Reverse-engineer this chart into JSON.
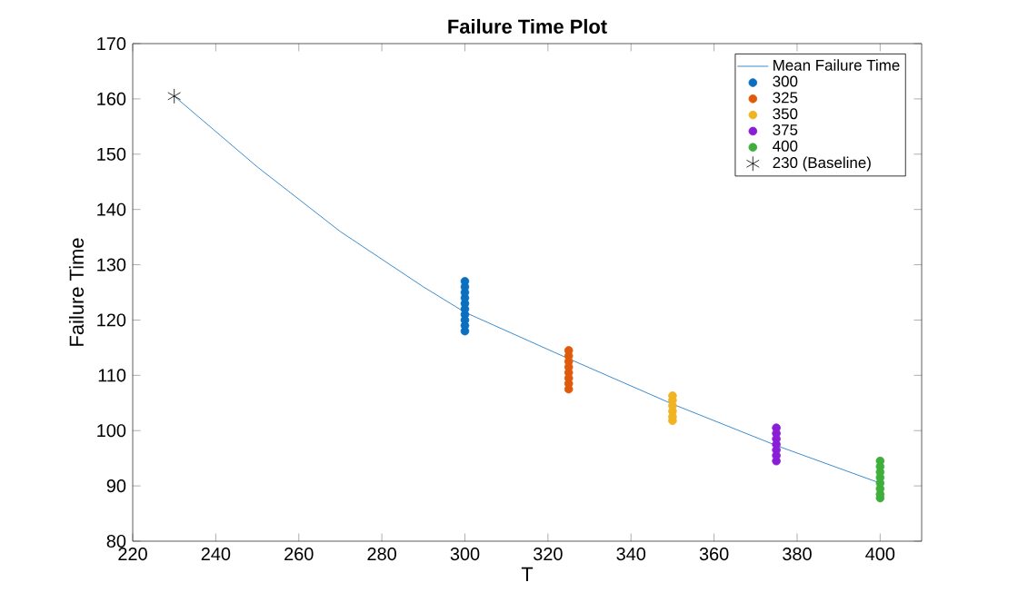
{
  "chart_data": {
    "type": "scatter",
    "title": "Failure Time Plot",
    "xlabel": "T",
    "ylabel": "Failure Time",
    "xlim": [
      220,
      410
    ],
    "xticks": [
      220,
      240,
      260,
      280,
      300,
      320,
      340,
      360,
      380,
      400
    ],
    "ylim": [
      80,
      170
    ],
    "yticks": [
      80,
      90,
      100,
      110,
      120,
      130,
      140,
      150,
      160,
      170
    ],
    "grid": false,
    "legend": "top right",
    "series": [
      {
        "name": "Mean Failure Time",
        "type": "line",
        "marker": "none",
        "color": "#0b6fc0",
        "x": [
          230,
          250,
          270,
          280,
          290,
          300,
          325,
          350,
          375,
          400
        ],
        "values": [
          160.5,
          147.7,
          136.0,
          131,
          126,
          121.4,
          113,
          104.8,
          97.3,
          90.5
        ]
      },
      {
        "name": "300",
        "marker": "circle",
        "color": "#0b6fc0",
        "x": [
          300,
          300,
          300,
          300,
          300,
          300,
          300,
          300,
          300,
          300
        ],
        "values": [
          118,
          119,
          120,
          121,
          122,
          123,
          124,
          125,
          126,
          127
        ]
      },
      {
        "name": "325",
        "marker": "circle",
        "color": "#e05a0b",
        "x": [
          325,
          325,
          325,
          325,
          325,
          325,
          325,
          325
        ],
        "values": [
          107.5,
          108.5,
          109.5,
          110.5,
          111.5,
          112.5,
          113.5,
          114.5
        ]
      },
      {
        "name": "350",
        "marker": "circle",
        "color": "#f0b323",
        "x": [
          350,
          350,
          350,
          350,
          350,
          350
        ],
        "values": [
          101.8,
          102.5,
          103.5,
          104.5,
          105.5,
          106.3
        ]
      },
      {
        "name": "375",
        "marker": "circle",
        "color": "#8a1ed6",
        "x": [
          375,
          375,
          375,
          375,
          375,
          375,
          375
        ],
        "values": [
          94.5,
          95.5,
          96.5,
          97.5,
          98.5,
          99.5,
          100.5
        ]
      },
      {
        "name": "400",
        "marker": "circle",
        "color": "#3fae3a",
        "x": [
          400,
          400,
          400,
          400,
          400,
          400,
          400,
          400
        ],
        "values": [
          87.8,
          88.5,
          89.5,
          90.5,
          91.5,
          92.5,
          93.5,
          94.5
        ]
      },
      {
        "name": "230 (Baseline)",
        "marker": "cross",
        "color": "#000000",
        "x": [
          230
        ],
        "values": [
          160.5
        ]
      }
    ]
  }
}
